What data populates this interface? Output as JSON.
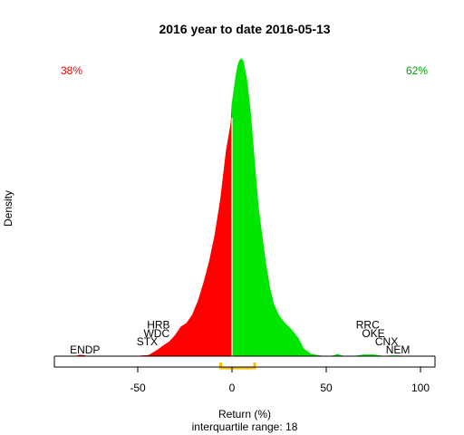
{
  "chart_data": {
    "type": "area",
    "title": "2016  year to date 2016-05-13",
    "xlabel": "Return (%)",
    "ylabel": "Density",
    "subtitle": "interquartile range: 18",
    "xlim": [
      -100,
      100
    ],
    "x_ticks": [
      -50,
      0,
      50,
      100
    ],
    "grid": false,
    "split_at": 0,
    "negative_share": "38%",
    "positive_share": "62%",
    "colors": {
      "negative": "#ff0000",
      "positive": "#00e600",
      "iqr": "#ffc000",
      "baseline": "#bebebe"
    },
    "iqr_range": [
      -6,
      12
    ],
    "density": [
      [
        -83,
        0.0
      ],
      [
        -81,
        0.001
      ],
      [
        -79,
        0.001
      ],
      [
        -77,
        0.0
      ],
      [
        -70,
        0.0
      ],
      [
        -50,
        0.0
      ],
      [
        -44,
        0.001
      ],
      [
        -40,
        0.006
      ],
      [
        -36,
        0.012
      ],
      [
        -33,
        0.016
      ],
      [
        -30,
        0.023
      ],
      [
        -27,
        0.032
      ],
      [
        -24,
        0.036
      ],
      [
        -21,
        0.045
      ],
      [
        -18,
        0.06
      ],
      [
        -15,
        0.08
      ],
      [
        -12,
        0.103
      ],
      [
        -9,
        0.133
      ],
      [
        -6,
        0.172
      ],
      [
        -3,
        0.225
      ],
      [
        -0.5,
        0.255
      ],
      [
        0,
        0.275
      ],
      [
        1,
        0.29
      ],
      [
        2,
        0.305
      ],
      [
        3,
        0.317
      ],
      [
        4,
        0.323
      ],
      [
        5,
        0.325
      ],
      [
        6,
        0.322
      ],
      [
        8,
        0.3
      ],
      [
        10,
        0.262
      ],
      [
        12,
        0.21
      ],
      [
        14,
        0.162
      ],
      [
        16,
        0.13
      ],
      [
        18,
        0.1
      ],
      [
        20,
        0.075
      ],
      [
        22,
        0.057
      ],
      [
        25,
        0.044
      ],
      [
        28,
        0.036
      ],
      [
        31,
        0.03
      ],
      [
        35,
        0.02
      ],
      [
        38,
        0.008
      ],
      [
        42,
        0.002
      ],
      [
        48,
        0.0
      ],
      [
        53,
        0.0
      ],
      [
        56,
        0.002
      ],
      [
        59,
        0.0
      ],
      [
        65,
        0.0
      ],
      [
        70,
        0.0015
      ],
      [
        75,
        0.0015
      ],
      [
        80,
        0.0
      ],
      [
        86,
        0.0005
      ],
      [
        93,
        0.0
      ],
      [
        95,
        0.0
      ]
    ],
    "annotations": [
      {
        "label": "ENDP",
        "x": -78,
        "y": 0.007
      },
      {
        "label": "STX",
        "x": -45,
        "y": 0.016
      },
      {
        "label": "WDC",
        "x": -40,
        "y": 0.025
      },
      {
        "label": "HRB",
        "x": -39,
        "y": 0.034
      },
      {
        "label": "RRC",
        "x": 72,
        "y": 0.034
      },
      {
        "label": "OKE",
        "x": 75,
        "y": 0.025
      },
      {
        "label": "CNX",
        "x": 82,
        "y": 0.016
      },
      {
        "label": "NEM",
        "x": 88,
        "y": 0.007
      }
    ]
  }
}
